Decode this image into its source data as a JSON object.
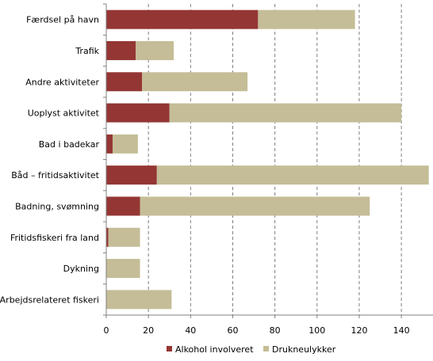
{
  "chart_data": {
    "type": "bar",
    "orientation": "horizontal",
    "stacked": true,
    "title": "",
    "xlabel": "",
    "ylabel": "",
    "categories": [
      "Færdsel på havn",
      "Trafik",
      "Andre aktiviteter",
      "Uoplyst aktivitet",
      "Bad i badekar",
      "Båd – fritidsaktivitet",
      "Badning, svømning",
      "Fritidsfiskeri fra land",
      "Dykning",
      "Arbejdsrelateret fiskeri"
    ],
    "series": [
      {
        "name": "Alkohol involveret",
        "color": "#943634",
        "values": [
          72,
          14,
          17,
          30,
          3,
          24,
          16,
          1,
          0,
          0
        ]
      },
      {
        "name": "Drukneulykker",
        "color": "#c4bd97",
        "values": [
          46,
          18,
          50,
          110,
          12,
          129,
          109,
          15,
          16,
          31
        ]
      }
    ],
    "xlim": [
      0,
      155
    ],
    "xticks": [
      "0",
      "20",
      "40",
      "60",
      "80",
      "100",
      "120",
      "140"
    ],
    "grid": "vertical dashed",
    "legend": "bottom"
  }
}
